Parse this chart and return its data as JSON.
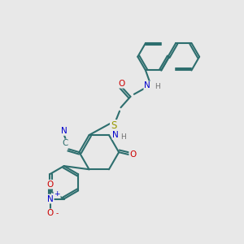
{
  "bg_color": "#e8e8e8",
  "bond_color": "#2d6e6e",
  "bond_width": 1.5,
  "atom_colors": {
    "O": "#cc0000",
    "N": "#0000cc",
    "S": "#999900",
    "C_label": "#2d6e6e",
    "H": "#707070",
    "NO2_N": "#0000cc",
    "NO2_O": "#cc0000"
  },
  "figsize": [
    3.0,
    3.0
  ],
  "dpi": 100
}
